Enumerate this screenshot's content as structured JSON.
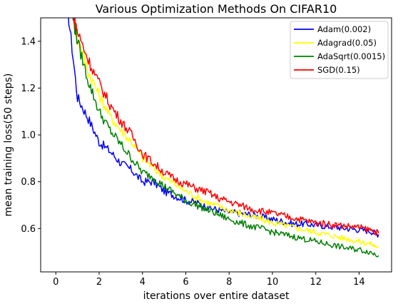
{
  "chart_data": {
    "type": "line",
    "title": "Various Optimization Methods On CIFAR10",
    "xlabel": "iterations over entire dataset",
    "ylabel": "mean training loss(50 steps)",
    "xlim": [
      -0.7,
      15.5
    ],
    "ylim": [
      0.415,
      1.5
    ],
    "xticks": [
      0,
      2,
      4,
      6,
      8,
      10,
      12,
      14
    ],
    "xtick_labels": [
      "0",
      "2",
      "4",
      "6",
      "8",
      "10",
      "12",
      "14"
    ],
    "yticks": [
      0.6,
      0.8,
      1.0,
      1.2,
      1.4
    ],
    "ytick_labels": [
      "0.6",
      "0.8",
      "1.0",
      "1.2",
      "1.4"
    ],
    "grid": false,
    "legend_position": "top-right",
    "series": [
      {
        "name": "Adam(0.002)",
        "color": "#0000ff",
        "points": [
          [
            0.5,
            1.58
          ],
          [
            1,
            1.16
          ],
          [
            1.5,
            1.07
          ],
          [
            2,
            0.97
          ],
          [
            2.5,
            0.93
          ],
          [
            3,
            0.88
          ],
          [
            3.5,
            0.85
          ],
          [
            4,
            0.8
          ],
          [
            4.5,
            0.8
          ],
          [
            5,
            0.76
          ],
          [
            5.5,
            0.74
          ],
          [
            6,
            0.72
          ],
          [
            6.5,
            0.71
          ],
          [
            7,
            0.69
          ],
          [
            7.5,
            0.68
          ],
          [
            8,
            0.67
          ],
          [
            8.5,
            0.665
          ],
          [
            9,
            0.66
          ],
          [
            9.5,
            0.65
          ],
          [
            10,
            0.64
          ],
          [
            10.5,
            0.63
          ],
          [
            11,
            0.62
          ],
          [
            11.5,
            0.62
          ],
          [
            12,
            0.615
          ],
          [
            12.5,
            0.61
          ],
          [
            13,
            0.605
          ],
          [
            13.5,
            0.6
          ],
          [
            14,
            0.595
          ],
          [
            14.5,
            0.59
          ],
          [
            14.9,
            0.575
          ]
        ]
      },
      {
        "name": "Adagrad(0.05)",
        "color": "#ffff00",
        "points": [
          [
            0.8,
            1.52
          ],
          [
            1,
            1.42
          ],
          [
            1.5,
            1.27
          ],
          [
            2,
            1.17
          ],
          [
            2.5,
            1.08
          ],
          [
            3,
            1.02
          ],
          [
            3.5,
            0.97
          ],
          [
            4,
            0.9
          ],
          [
            4.5,
            0.86
          ],
          [
            5,
            0.82
          ],
          [
            5.5,
            0.79
          ],
          [
            6,
            0.76
          ],
          [
            6.5,
            0.735
          ],
          [
            7,
            0.71
          ],
          [
            7.5,
            0.695
          ],
          [
            8,
            0.68
          ],
          [
            8.5,
            0.665
          ],
          [
            9,
            0.65
          ],
          [
            9.5,
            0.64
          ],
          [
            10,
            0.625
          ],
          [
            10.5,
            0.615
          ],
          [
            11,
            0.605
          ],
          [
            11.5,
            0.595
          ],
          [
            12,
            0.585
          ],
          [
            12.5,
            0.575
          ],
          [
            13,
            0.565
          ],
          [
            13.5,
            0.555
          ],
          [
            14,
            0.545
          ],
          [
            14.5,
            0.535
          ],
          [
            14.9,
            0.52
          ]
        ]
      },
      {
        "name": "AdaSqrt(0.0015)",
        "color": "#008000",
        "points": [
          [
            0.75,
            1.52
          ],
          [
            1,
            1.4
          ],
          [
            1.5,
            1.23
          ],
          [
            2,
            1.1
          ],
          [
            2.5,
            1.02
          ],
          [
            3,
            0.96
          ],
          [
            3.5,
            0.9
          ],
          [
            4,
            0.84
          ],
          [
            4.5,
            0.82
          ],
          [
            5,
            0.78
          ],
          [
            5.5,
            0.75
          ],
          [
            6,
            0.72
          ],
          [
            6.5,
            0.7
          ],
          [
            7,
            0.68
          ],
          [
            7.5,
            0.66
          ],
          [
            8,
            0.64
          ],
          [
            8.5,
            0.625
          ],
          [
            9,
            0.61
          ],
          [
            9.5,
            0.6
          ],
          [
            10,
            0.585
          ],
          [
            10.5,
            0.575
          ],
          [
            11,
            0.565
          ],
          [
            11.5,
            0.555
          ],
          [
            12,
            0.545
          ],
          [
            12.5,
            0.535
          ],
          [
            13,
            0.525
          ],
          [
            13.5,
            0.515
          ],
          [
            14,
            0.51
          ],
          [
            14.5,
            0.5
          ],
          [
            14.9,
            0.485
          ]
        ]
      },
      {
        "name": "SGD(0.15)",
        "color": "#ff0000",
        "points": [
          [
            0.8,
            1.52
          ],
          [
            1,
            1.44
          ],
          [
            1.5,
            1.32
          ],
          [
            2,
            1.22
          ],
          [
            2.5,
            1.13
          ],
          [
            3,
            1.06
          ],
          [
            3.5,
            1.0
          ],
          [
            4,
            0.92
          ],
          [
            4.5,
            0.88
          ],
          [
            5,
            0.84
          ],
          [
            5.5,
            0.81
          ],
          [
            6,
            0.79
          ],
          [
            6.5,
            0.77
          ],
          [
            7,
            0.755
          ],
          [
            7.5,
            0.73
          ],
          [
            8,
            0.715
          ],
          [
            8.5,
            0.7
          ],
          [
            9,
            0.685
          ],
          [
            9.5,
            0.675
          ],
          [
            10,
            0.665
          ],
          [
            10.5,
            0.655
          ],
          [
            11,
            0.645
          ],
          [
            11.5,
            0.635
          ],
          [
            12,
            0.625
          ],
          [
            12.5,
            0.62
          ],
          [
            13,
            0.615
          ],
          [
            13.5,
            0.61
          ],
          [
            14,
            0.605
          ],
          [
            14.5,
            0.595
          ],
          [
            14.9,
            0.58
          ]
        ]
      }
    ]
  }
}
